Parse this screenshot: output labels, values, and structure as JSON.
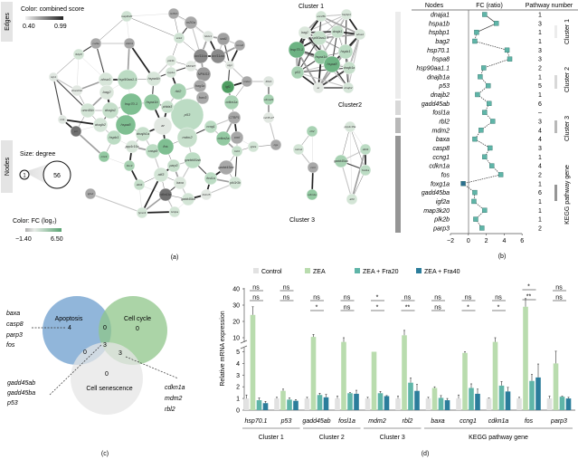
{
  "panel_a": {
    "label": "(a)",
    "edges_tab": "Edges",
    "nodes_tab": "Nodes",
    "edge_color_title": "Color: combined score",
    "edge_min": "0.40",
    "edge_max": "0.99",
    "size_title": "Size: degree",
    "size_min": "1",
    "size_max": "56",
    "node_color_title": "Color: FC (log₂)",
    "fc_min": "−1.40",
    "fc_max": "6.50",
    "colors": {
      "fc_low": "#b0b0b0",
      "fc_high": "#5aa472",
      "edge_low": "#dcdcdc",
      "edge_high": "#222222"
    },
    "cluster1_label": "Cluster 1",
    "cluster2_label": "Cluster2",
    "cluster3_label": "Cluster 3",
    "main_nodes": [
      {
        "label": "map3k20",
        "color": "#cfe2d3"
      },
      {
        "label": "cul4a",
        "color": "#a8a8a8"
      },
      {
        "label": "AGO1",
        "color": "#a8a8a8"
      },
      {
        "label": "fkbp8",
        "color": "#d3e5d6"
      },
      {
        "label": "nrp1",
        "color": "#dfe6e0"
      },
      {
        "label": "ahsa1",
        "color": "#d8e6da"
      },
      {
        "label": "hsp90aa1.1",
        "color": "#bcdcc4"
      },
      {
        "label": "hspa4b",
        "color": "#d8e6da"
      },
      {
        "label": "bag2",
        "color": "#dbe7dc"
      },
      {
        "label": "chordc1b",
        "color": "#e2e8e2"
      },
      {
        "label": "hsp70.1",
        "color": "#7fbf92"
      },
      {
        "label": "hspa1b",
        "color": "#93c9a2"
      },
      {
        "label": "unc45b",
        "color": "#d2e4d5"
      },
      {
        "label": "dnaja1",
        "color": "#c6dfcb"
      },
      {
        "label": "mt1",
        "color": "#e0e7e1"
      },
      {
        "label": "dnajb2",
        "color": "#d6e6d9"
      },
      {
        "label": "hspa8",
        "color": "#7fbf92"
      },
      {
        "label": "jun",
        "color": "#707070"
      },
      {
        "label": "nr2f1b",
        "color": "#a8a8a8"
      },
      {
        "label": "nr2f1a",
        "color": "#a8a8a8"
      },
      {
        "label": "hkdc1",
        "color": "#dfe6e0"
      },
      {
        "label": "snk2",
        "color": "#cfe2d3"
      },
      {
        "label": "snd1",
        "color": "#a0a0a0"
      },
      {
        "label": "mxra5",
        "color": "#a8a8a8"
      },
      {
        "label": "plk3b",
        "color": "#dbe7dc"
      },
      {
        "label": "FBXW7",
        "color": "#e2e8e2"
      },
      {
        "label": "bcl11ba",
        "color": "#8a8a8a"
      },
      {
        "label": "bcl11aa",
        "color": "#8a8a8a"
      },
      {
        "label": "vtg1",
        "color": "#e2e8e2"
      },
      {
        "label": "cyp1a",
        "color": "#d6e6d9"
      },
      {
        "label": "NPAS3",
        "color": "#9a9a9a"
      },
      {
        "label": "foxg1a",
        "color": "#a8a8a8"
      },
      {
        "label": "igf1",
        "color": "#4f9e62"
      },
      {
        "label": "nr2e1",
        "color": "#a8a8a8"
      },
      {
        "label": "rbl2",
        "color": "#a8d2b3"
      },
      {
        "label": "foxo3",
        "color": "#a8a8a8"
      },
      {
        "label": "cdkn1a",
        "color": "#a8d2b3"
      },
      {
        "label": "p53",
        "color": "#bcdcc4"
      },
      {
        "label": "ar",
        "color": "#e2e8e2"
      },
      {
        "label": "phlda3",
        "color": "#c6dfcb"
      },
      {
        "label": "ccng1",
        "color": "#bcdcc4"
      },
      {
        "label": "CTBP1",
        "color": "#a8a8a8"
      },
      {
        "label": "hspb1",
        "color": "#bcdcc4"
      },
      {
        "label": "dnajb1a",
        "color": "#c6dfcb"
      },
      {
        "label": "ppp1r15a",
        "color": "#d8e6da"
      },
      {
        "label": "mt14",
        "color": "#93c9a2"
      },
      {
        "label": "casp8",
        "color": "#bcdcc4"
      },
      {
        "label": "bbc3",
        "color": "#a8d2b3"
      },
      {
        "label": "ddit4",
        "color": "#c6dfcb"
      },
      {
        "label": "igfs2",
        "color": "#a8a8a8"
      },
      {
        "label": "lymo3",
        "color": "#d3e5d6"
      },
      {
        "label": "fos",
        "color": "#7fbf92"
      },
      {
        "label": "mdm2",
        "color": "#c6dfcb"
      },
      {
        "label": "cdkn2a",
        "color": "#93c9a2"
      },
      {
        "label": "ccnl",
        "color": "#a8a8a8"
      },
      {
        "label": "gadd45ab",
        "color": "#bcdcc4"
      },
      {
        "label": "parp3",
        "color": "#c6dfcb"
      },
      {
        "label": "atf3",
        "color": "#d3e5d6"
      },
      {
        "label": "baxa",
        "color": "#dbe7dc"
      },
      {
        "label": "fosl1a",
        "color": "#bcdcc4"
      },
      {
        "label": "gadd45ac",
        "color": "#a8a8a8"
      },
      {
        "label": "pik3r3b",
        "color": "#d3e5d6"
      },
      {
        "label": "KLF15",
        "color": "#e2e8e2"
      },
      {
        "label": "gadd45ba",
        "color": "#d3e5d6"
      },
      {
        "label": "cdkn1ba",
        "color": "#707070"
      },
      {
        "label": "txnipa",
        "color": "#d3e5d6"
      },
      {
        "label": "igf2a",
        "color": "#d3e5d6"
      },
      {
        "label": "bcl3",
        "color": "#c6dfcb"
      },
      {
        "label": "fbf1b",
        "color": "#dfe6e0"
      },
      {
        "label": "elmod3",
        "color": "#a8d2b3"
      },
      {
        "label": "mir35-27",
        "color": "#e2e8e2"
      },
      {
        "label": "ngs",
        "color": "#a8a8a8"
      }
    ],
    "cluster1_nodes": [
      {
        "label": "unc45b",
        "color": "#d2e4d5"
      },
      {
        "label": "hspbp1",
        "color": "#d8e6da"
      },
      {
        "label": "bag2",
        "color": "#dbe7dc"
      },
      {
        "label": "dnaja1",
        "color": "#c6dfcb"
      },
      {
        "label": "hsp90aa1.1",
        "color": "#c6dfcb"
      },
      {
        "label": "hsp70.1",
        "color": "#6db383"
      },
      {
        "label": "hspa1b",
        "color": "#93c9a2"
      },
      {
        "label": "hspa8",
        "color": "#6db383"
      },
      {
        "label": "ahsa1",
        "color": "#d8e6da"
      },
      {
        "label": "hspb1",
        "color": "#bcdcc4"
      },
      {
        "label": "p53",
        "color": "#a8d2b3"
      },
      {
        "label": "ar",
        "color": "#e2e8e2"
      },
      {
        "label": "dnajb1a",
        "color": "#c6dfcb"
      },
      {
        "label": "dnajb2",
        "color": "#d6e6d9"
      }
    ],
    "cluster2_nodes": [
      {
        "label": "ppp1r15a",
        "color": "#d8e6da"
      },
      {
        "label": "gadd45ab",
        "color": "#a8d2b3"
      },
      {
        "label": "ddit4",
        "color": "#bcdcc4"
      },
      {
        "label": "fosl1a",
        "color": "#bcdcc4"
      },
      {
        "label": "atf3",
        "color": "#d3e5d6"
      }
    ],
    "cluster3_nodes": [
      {
        "label": "rbl2",
        "color": "#a8d2b3"
      },
      {
        "label": "mdm2",
        "color": "#d3e5d6"
      },
      {
        "label": "ccnl",
        "color": "#a8a8a8"
      },
      {
        "label": "cdkn1a",
        "color": "#93c9a2"
      }
    ]
  },
  "panel_b": {
    "label": "(b)",
    "headers": {
      "nodes": "Nodes",
      "fc": "FC (ratio)",
      "pathway": "Pathway number"
    },
    "x_ticks": [
      "−2",
      "0",
      "2",
      "4",
      "6"
    ],
    "group_labels": [
      "Cluster 1",
      "Cluster 2",
      "Cluster 3",
      "KEGG pathway gene"
    ],
    "colors": {
      "marker": "#5fb5a8",
      "negative_marker": "#2b6f8f"
    },
    "rows": [
      {
        "node": "dnaja1",
        "fc": 1.8,
        "pathway": "1"
      },
      {
        "node": "hspa1b",
        "fc": 3.1,
        "pathway": "3"
      },
      {
        "node": "hspbp1",
        "fc": 0.9,
        "pathway": "1"
      },
      {
        "node": "bag2",
        "fc": 0.7,
        "pathway": "1"
      },
      {
        "node": "hsp70.1",
        "fc": 4.3,
        "pathway": "3"
      },
      {
        "node": "hspa8",
        "fc": 4.6,
        "pathway": "3"
      },
      {
        "node": "hsp90aa1.1",
        "fc": 1.7,
        "pathway": "2"
      },
      {
        "node": "dnajb1a",
        "fc": 1.3,
        "pathway": "1"
      },
      {
        "node": "p53",
        "fc": 2.2,
        "pathway": "5"
      },
      {
        "node": "dnajb2",
        "fc": 1.0,
        "pathway": "1"
      },
      {
        "node": "gadd45ab",
        "fc": 2.3,
        "pathway": "6"
      },
      {
        "node": "fosl1a",
        "fc": 1.8,
        "pathway": "–"
      },
      {
        "node": "rbl2",
        "fc": 2.7,
        "pathway": "3"
      },
      {
        "node": "mdm2",
        "fc": 1.4,
        "pathway": "4"
      },
      {
        "node": "baxa",
        "fc": 0.7,
        "pathway": "4"
      },
      {
        "node": "casp8",
        "fc": 2.4,
        "pathway": "3"
      },
      {
        "node": "ccng1",
        "fc": 1.8,
        "pathway": "1"
      },
      {
        "node": "cdkn1a",
        "fc": 2.6,
        "pathway": "4"
      },
      {
        "node": "fos",
        "fc": 3.6,
        "pathway": "2"
      },
      {
        "node": "foxg1a",
        "fc": -0.6,
        "pathway": "1"
      },
      {
        "node": "gadd45ba",
        "fc": 0.7,
        "pathway": "6"
      },
      {
        "node": "igf2a",
        "fc": 0.6,
        "pathway": "1"
      },
      {
        "node": "map3k20",
        "fc": 1.8,
        "pathway": "1"
      },
      {
        "node": "plk2b",
        "fc": 0.8,
        "pathway": "1"
      },
      {
        "node": "parp3",
        "fc": 1.5,
        "pathway": "2"
      }
    ]
  },
  "panel_c": {
    "label": "(c)",
    "sets": [
      {
        "name": "Apoptosis",
        "color": "#7ea9d3"
      },
      {
        "name": "Cell cycle",
        "color": "#8fc58a"
      },
      {
        "name": "Cell senescence",
        "color": "#e6e6e6"
      }
    ],
    "counts": {
      "apoptosis_only": "4",
      "apoptosis_cellcycle": "0",
      "cellcycle_only": "0",
      "all_three": "3",
      "apoptosis_senescence": "0",
      "cellcycle_senescence": "3",
      "senescence_only": "0"
    },
    "apoptosis_genes": [
      "baxa",
      "casp8",
      "parp3",
      "fos"
    ],
    "all_three_genes": [
      "gadd45ab",
      "gadd45ba",
      "p53"
    ],
    "cellcycle_senescence_genes": [
      "cdkn1a",
      "mdm2",
      "rbl2"
    ]
  },
  "chart_data": {
    "type": "bar",
    "title": "",
    "label": "(d)",
    "ylabel": "Relative mRNA expression",
    "y_ticks": [
      "0",
      "1",
      "2",
      "3",
      "4",
      "5",
      "10",
      "20",
      "30",
      "40"
    ],
    "ylim": [
      0,
      40
    ],
    "y_axis_break": [
      5,
      10
    ],
    "categories": [
      "hsp70.1",
      "p53",
      "gadd45ab",
      "fosl1a",
      "mdm2",
      "rbl2",
      "baxa",
      "ccng1",
      "cdkn1a",
      "fos",
      "parp3"
    ],
    "groups": [
      {
        "name": "Cluster 1",
        "categories": [
          "hsp70.1",
          "p53"
        ]
      },
      {
        "name": "Cluster 2",
        "categories": [
          "gadd45ab",
          "fosl1a"
        ]
      },
      {
        "name": "Cluster 3",
        "categories": [
          "mdm2",
          "rbl2"
        ]
      },
      {
        "name": "KEGG pathway gene",
        "categories": [
          "baxa",
          "ccng1",
          "cdkn1a",
          "fos",
          "parp3"
        ]
      }
    ],
    "series": [
      {
        "name": "Control",
        "color": "#e2e2e2",
        "values": [
          1.0,
          1.0,
          1.0,
          1.0,
          1.0,
          1.0,
          1.0,
          1.0,
          1.0,
          1.0,
          1.0
        ],
        "errors": [
          0.3,
          0.1,
          0.1,
          0.2,
          0.1,
          0.2,
          0.1,
          0.3,
          0.05,
          0.1,
          0.2
        ]
      },
      {
        "name": "ZEA",
        "color": "#b9dcae",
        "values": [
          24,
          1.65,
          10.5,
          8.5,
          5.0,
          11.5,
          1.9,
          4.9,
          8.5,
          29,
          4.0
        ],
        "errors": [
          5,
          0.15,
          1.5,
          1.5,
          0,
          3,
          0.1,
          0.1,
          1.5,
          5,
          1.2
        ]
      },
      {
        "name": "ZEA + Fra20",
        "color": "#5fb5a8",
        "values": [
          0.85,
          0.9,
          1.3,
          1.45,
          1.45,
          2.35,
          1.05,
          1.9,
          2.1,
          2.5,
          1.15
        ],
        "errors": [
          0.2,
          0.15,
          0.15,
          0.05,
          0.15,
          0.4,
          0.2,
          0.35,
          0.35,
          0.55,
          0.05
        ]
      },
      {
        "name": "ZEA + Fra40",
        "color": "#2b7d9b",
        "values": [
          0.6,
          0.8,
          1.1,
          1.4,
          1.2,
          1.65,
          0.85,
          1.4,
          1.6,
          2.8,
          1.0
        ],
        "errors": [
          0.15,
          0.1,
          0.25,
          0.3,
          0.05,
          0.55,
          0.15,
          0.4,
          0.35,
          1.15,
          0.1
        ]
      }
    ],
    "significance": [
      {
        "gene": "hsp70.1",
        "upper": "ns",
        "lower": "ns"
      },
      {
        "gene": "p53",
        "upper": "ns",
        "lower": "ns"
      },
      {
        "gene": "gadd45ab",
        "upper": "ns",
        "lower": "*"
      },
      {
        "gene": "fosl1a",
        "upper": "ns",
        "lower": "ns"
      },
      {
        "gene": "mdm2",
        "upper": "*",
        "lower": "*"
      },
      {
        "gene": "rbl2",
        "upper": "ns",
        "lower": "**"
      },
      {
        "gene": "baxa",
        "upper": "ns",
        "lower": "ns"
      },
      {
        "gene": "ccng1",
        "upper": "ns",
        "lower": "*"
      },
      {
        "gene": "cdkn1a",
        "upper": "ns",
        "lower": "*"
      },
      {
        "gene": "fos",
        "upper": "*",
        "lower": "**"
      },
      {
        "gene": "parp3",
        "upper": "ns",
        "lower": "ns"
      }
    ]
  }
}
